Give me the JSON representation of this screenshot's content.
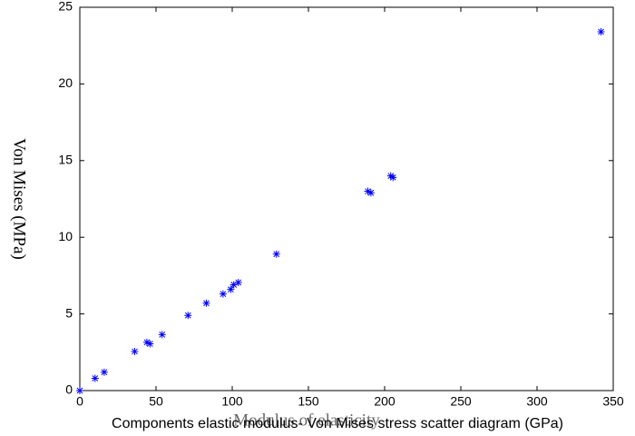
{
  "chart_data": {
    "type": "scatter",
    "xlabel": "Modulus of elasticity",
    "caption": "Components elastic modulus- Von Mises stress scatter diagram (GPa)",
    "ylabel": "Von Mises (MPa)",
    "color": "#0000ff",
    "marker": "asterisk",
    "grid": false,
    "x": [
      0,
      10,
      16,
      36,
      44,
      46,
      54,
      71,
      83,
      94,
      99,
      101,
      104,
      129,
      189,
      191,
      204,
      205.5,
      342
    ],
    "values": [
      0,
      0.8,
      1.2,
      2.55,
      3.15,
      3.05,
      3.65,
      4.9,
      5.7,
      6.3,
      6.6,
      6.9,
      7.05,
      8.9,
      13,
      12.9,
      14,
      13.9,
      23.4
    ],
    "xlim": [
      0,
      350
    ],
    "xticks": [
      0,
      50,
      100,
      150,
      200,
      250,
      300,
      350
    ],
    "ylim": [
      0,
      25
    ],
    "yticks": [
      0,
      5,
      10,
      15,
      20,
      25
    ]
  }
}
